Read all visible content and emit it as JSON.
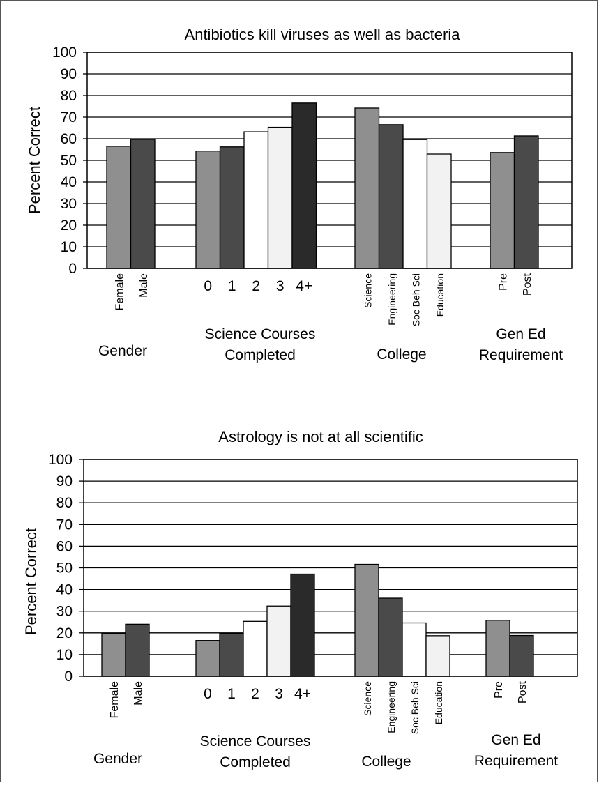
{
  "chart_data": [
    {
      "type": "bar",
      "title": "Antibiotics kill viruses as well as bacteria",
      "ylabel": "Percent Correct",
      "ylim": [
        0,
        100
      ],
      "yticks": [
        "0",
        "10",
        "20",
        "30",
        "40",
        "50",
        "60",
        "70",
        "80",
        "90",
        "100"
      ],
      "grid": true,
      "groups": [
        {
          "name": "Gender",
          "label_lines": [
            "Gender"
          ],
          "bar_labels_vertical": true,
          "bars": [
            {
              "label": "Female",
              "value": 56.5,
              "color": "#8f8f8f"
            },
            {
              "label": "Male",
              "value": 59.7,
              "color": "#4a4a4a"
            }
          ]
        },
        {
          "name": "Science Courses Completed",
          "label_lines": [
            "Science Courses",
            "Completed"
          ],
          "bar_labels_vertical": false,
          "bars": [
            {
              "label": "0",
              "value": 54.3,
              "color": "#8f8f8f"
            },
            {
              "label": "1",
              "value": 56.2,
              "color": "#4a4a4a"
            },
            {
              "label": "2",
              "value": 63.2,
              "color": "#ffffff"
            },
            {
              "label": "3",
              "value": 65.3,
              "color": "#f2f2f2"
            },
            {
              "label": "4+",
              "value": 76.5,
              "color": "#2a2a2a"
            }
          ]
        },
        {
          "name": "College",
          "label_lines": [
            "College"
          ],
          "bar_labels_vertical": true,
          "bars": [
            {
              "label": "Science",
              "value": 74.2,
              "color": "#8f8f8f"
            },
            {
              "label": "Engineering",
              "value": 66.5,
              "color": "#4a4a4a"
            },
            {
              "label": "Soc Beh Sci",
              "value": 59.6,
              "color": "#ffffff"
            },
            {
              "label": "Education",
              "value": 52.9,
              "color": "#f2f2f2"
            }
          ]
        },
        {
          "name": "Gen Ed Requirement",
          "label_lines": [
            "Gen Ed",
            "Requirement"
          ],
          "bar_labels_vertical": true,
          "bars": [
            {
              "label": "Pre",
              "value": 53.6,
              "color": "#8f8f8f"
            },
            {
              "label": "Post",
              "value": 61.3,
              "color": "#4a4a4a"
            }
          ]
        }
      ]
    },
    {
      "type": "bar",
      "title": "Astrology is not at all scientific",
      "ylabel": "Percent Correct",
      "ylim": [
        0,
        100
      ],
      "yticks": [
        "0",
        "10",
        "20",
        "30",
        "40",
        "50",
        "60",
        "70",
        "80",
        "90",
        "100"
      ],
      "grid": true,
      "groups": [
        {
          "name": "Gender",
          "label_lines": [
            "Gender"
          ],
          "bar_labels_vertical": true,
          "bars": [
            {
              "label": "Female",
              "value": 19.6,
              "color": "#8f8f8f"
            },
            {
              "label": "Male",
              "value": 24.0,
              "color": "#4a4a4a"
            }
          ]
        },
        {
          "name": "Science Courses Completed",
          "label_lines": [
            "Science Courses",
            "Completed"
          ],
          "bar_labels_vertical": false,
          "bars": [
            {
              "label": "0",
              "value": 16.5,
              "color": "#8f8f8f"
            },
            {
              "label": "1",
              "value": 19.6,
              "color": "#4a4a4a"
            },
            {
              "label": "2",
              "value": 25.3,
              "color": "#ffffff"
            },
            {
              "label": "3",
              "value": 32.4,
              "color": "#f2f2f2"
            },
            {
              "label": "4+",
              "value": 47.1,
              "color": "#2a2a2a"
            }
          ]
        },
        {
          "name": "College",
          "label_lines": [
            "College"
          ],
          "bar_labels_vertical": true,
          "bars": [
            {
              "label": "Science",
              "value": 51.6,
              "color": "#8f8f8f"
            },
            {
              "label": "Engineering",
              "value": 36.0,
              "color": "#4a4a4a"
            },
            {
              "label": "Soc Beh Sci",
              "value": 24.6,
              "color": "#ffffff"
            },
            {
              "label": "Education",
              "value": 18.7,
              "color": "#f2f2f2"
            }
          ]
        },
        {
          "name": "Gen Ed Requirement",
          "label_lines": [
            "Gen Ed",
            "Requirement"
          ],
          "bar_labels_vertical": true,
          "bars": [
            {
              "label": "Pre",
              "value": 25.8,
              "color": "#8f8f8f"
            },
            {
              "label": "Post",
              "value": 18.8,
              "color": "#4a4a4a"
            }
          ]
        }
      ]
    }
  ]
}
